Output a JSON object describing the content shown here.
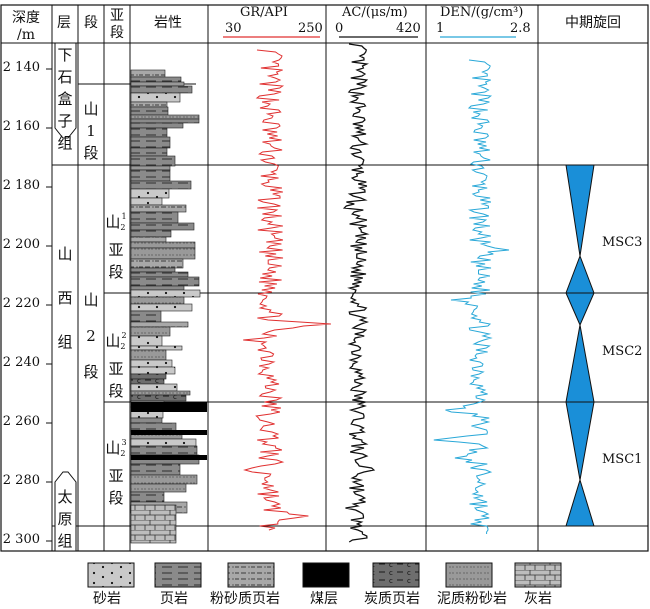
{
  "headers": {
    "depth": [
      "深度",
      "/m"
    ],
    "layer": "层",
    "segment": "段",
    "subsegment": [
      "亚",
      "段"
    ],
    "lithology": "岩性",
    "gr": {
      "title": "GR/API",
      "min": "30",
      "max": "250",
      "color": "#e03030"
    },
    "ac": {
      "title": "AC/(μs/m)",
      "min": "0",
      "max": "420",
      "color": "#111111"
    },
    "den": {
      "title": "DEN/(g/cm³)",
      "min": "1",
      "max": "2.8",
      "color": "#29a8d8"
    },
    "cycle": "中期旋回"
  },
  "depth_ticks": [
    "2 140",
    "2 160",
    "2 180",
    "2 200",
    "2 220",
    "2 240",
    "2 260",
    "2 280",
    "2 300"
  ],
  "formations": {
    "upper": "下石盒子组",
    "shanxi": "山西组",
    "taiyuan": "太原组"
  },
  "members": {
    "shan1": [
      "山",
      "1",
      "段"
    ],
    "shan2": [
      "山",
      "2",
      "段"
    ]
  },
  "submembers": {
    "s21": {
      "main": "山",
      "sub": "2",
      "sup": "1",
      "rest": [
        "亚",
        "段"
      ]
    },
    "s22": {
      "main": "山",
      "sub": "2",
      "sup": "2",
      "rest": [
        "亚",
        "段"
      ]
    },
    "s23": {
      "main": "山",
      "sub": "2",
      "sup": "3",
      "rest": [
        "亚",
        "段"
      ]
    }
  },
  "cycles": [
    "MSC3",
    "MSC2",
    "MSC1"
  ],
  "cycle_color": "#1a8fd8",
  "legend": [
    "砂岩",
    "页岩",
    "粉砂质页岩",
    "煤层",
    "炭质页岩",
    "泥质粉砂岩",
    "灰岩"
  ]
}
